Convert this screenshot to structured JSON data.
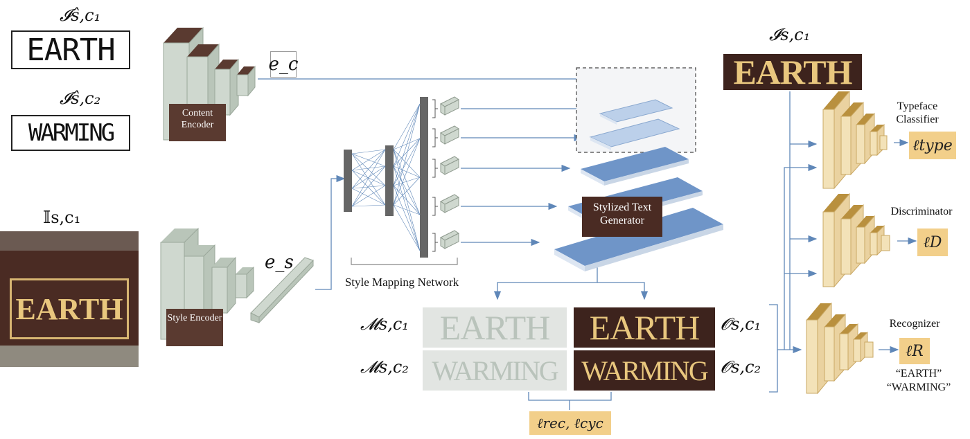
{
  "inputs": {
    "content_label_1": "𝓘ŝ,c₁",
    "content_word_1": "EARTH",
    "content_label_2": "𝓘ŝ,c₂",
    "content_word_2": "WARMING",
    "style_label": "𝕀s,c₁",
    "style_word": "EARTH"
  },
  "encoders": {
    "content_encoder": "Content Encoder",
    "content_feature": "e_c",
    "style_encoder": "Style Encoder",
    "style_feature": "e_s"
  },
  "mapping": {
    "label": "Style Mapping Network"
  },
  "generator": {
    "label": "Stylized Text Generator"
  },
  "outputs": {
    "mask_label_1": "𝓜s,c₁",
    "mask_label_2": "𝓜s,c₂",
    "out_label_1": "𝓞s,c₁",
    "out_label_2": "𝓞s,c₂",
    "word_1": "EARTH",
    "word_2": "WARMING",
    "loss": "ℓrec, ℓcyc"
  },
  "target": {
    "label": "𝓘s,c₁",
    "word": "EARTH"
  },
  "heads": {
    "typeface": "Typeface Classifier",
    "typeface_loss": "ℓtype",
    "discriminator": "Discriminator",
    "disc_loss": "ℓD",
    "recognizer": "Recognizer",
    "rec_loss": "ℓR",
    "rec_words_1": "“EARTH”",
    "rec_words_2": "“WARMING”"
  },
  "colors": {
    "brown": "#4a2b23",
    "gold": "#e9c77e",
    "blue_plate": "#6f95c8",
    "arrow": "#5f87b8",
    "encoder_block": "#cfd8cf"
  }
}
